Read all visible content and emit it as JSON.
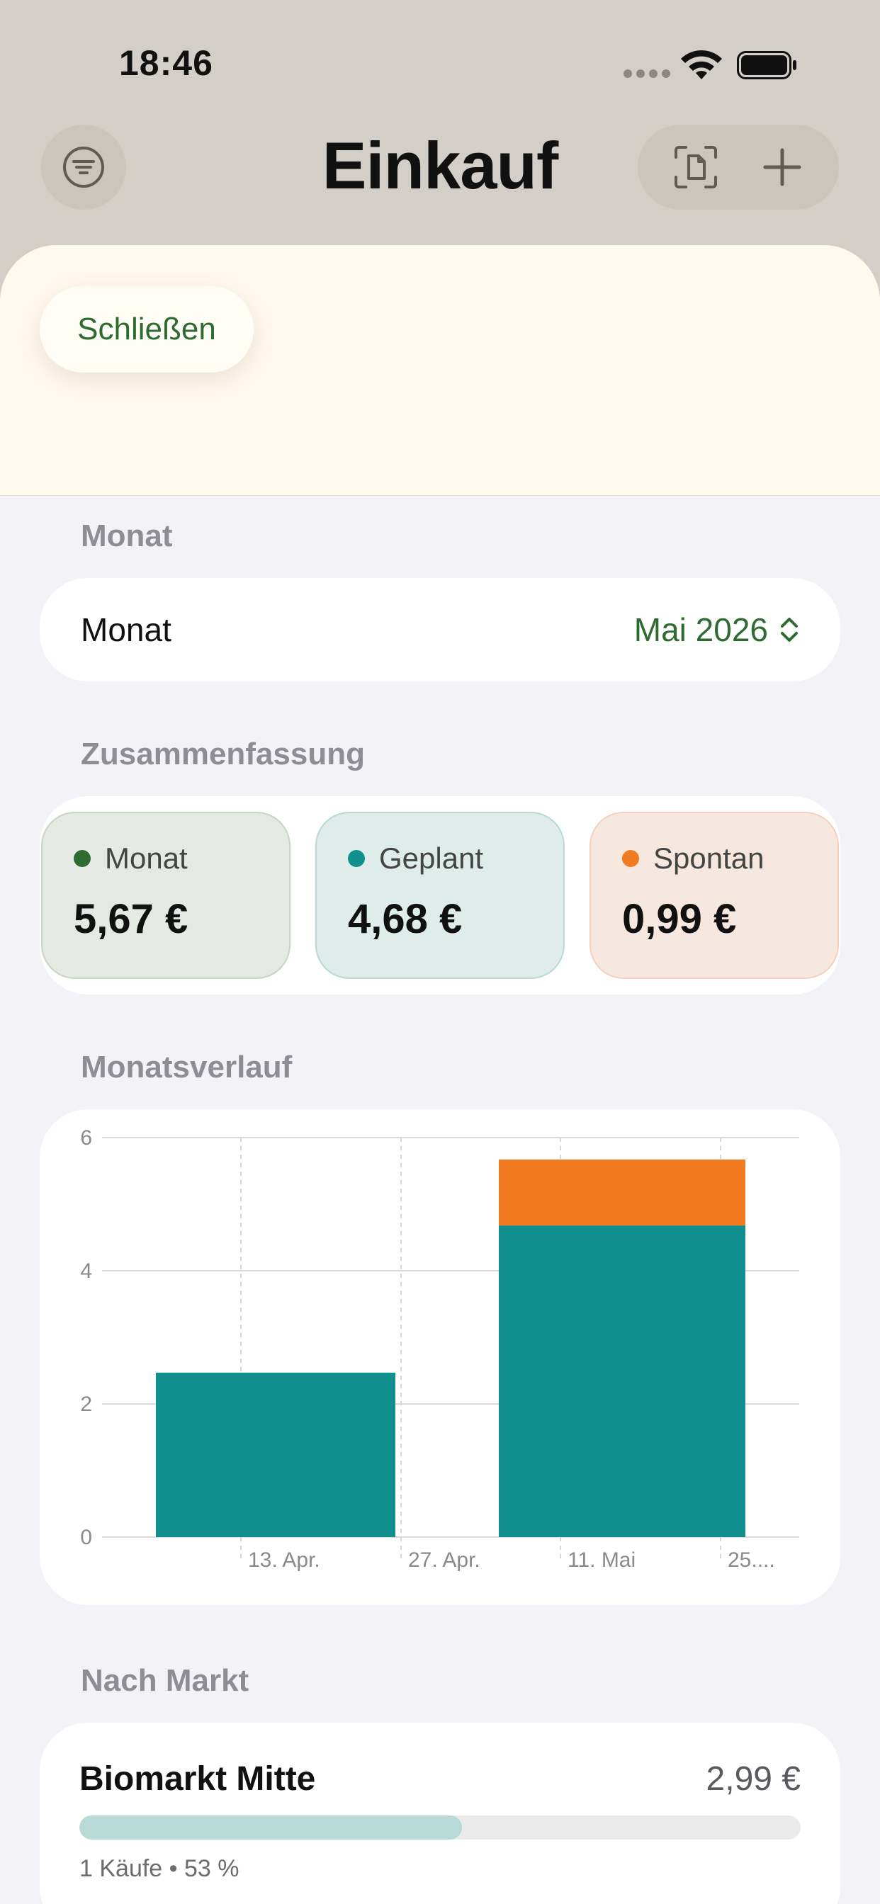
{
  "status_bar": {
    "time": "18:46"
  },
  "header": {
    "title": "Einkauf",
    "icons": [
      "filter-icon",
      "scan-document-icon",
      "plus-icon"
    ]
  },
  "sheet": {
    "close_label": "Schließen"
  },
  "month_section": {
    "label": "Monat",
    "row_label": "Monat",
    "value": "Mai 2026",
    "accent": "#2e6b30"
  },
  "summary_section": {
    "label": "Zusammenfassung",
    "tiles": [
      {
        "label": "Monat",
        "value": "5,67 €",
        "dot_color": "#2e6b30",
        "bg": "#e4eae3",
        "border": "#c8d4c6"
      },
      {
        "label": "Geplant",
        "value": "4,68 €",
        "dot_color": "#11908f",
        "bg": "#deecea",
        "border": "#b8d9d6"
      },
      {
        "label": "Spontan",
        "value": "0,99 €",
        "dot_color": "#f27a20",
        "bg": "#f6e8df",
        "border": "#f3d2bb"
      }
    ]
  },
  "history_section": {
    "label": "Monatsverlauf"
  },
  "chart_data": {
    "type": "bar",
    "stacked": true,
    "x_tick_labels": [
      "13. Apr.",
      "27. Apr.",
      "11. Mai",
      "25...."
    ],
    "y_ticks": [
      0,
      2,
      4,
      6
    ],
    "ylim": [
      0,
      6
    ],
    "grid": true,
    "colors": {
      "planned": "#11908f",
      "spontaneous": "#f27a20"
    },
    "bars": [
      {
        "planned": 2.47,
        "spontaneous": 0
      },
      {
        "planned": 4.68,
        "spontaneous": 0.99
      }
    ]
  },
  "market_section": {
    "label": "Nach Markt",
    "items": [
      {
        "name": "Biomarkt Mitte",
        "amount": "2,99 €",
        "meta": "1 Käufe • 53 %",
        "share": 0.53
      }
    ]
  }
}
